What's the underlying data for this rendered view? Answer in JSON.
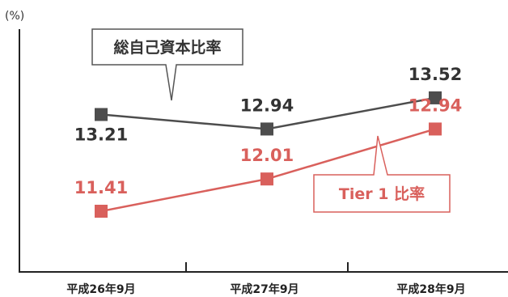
{
  "chart_data": {
    "type": "line",
    "unit_label": "(%)",
    "categories": [
      "平成26年9月",
      "平成27年9月",
      "平成28年9月"
    ],
    "series": [
      {
        "name": "総自己資本比率",
        "values": [
          13.21,
          12.94,
          13.52
        ],
        "value_labels": [
          "13.21",
          "12.94",
          "13.52"
        ],
        "color": "#4d4d4d"
      },
      {
        "name": "Tier 1 比率",
        "values": [
          11.41,
          12.01,
          12.94
        ],
        "value_labels": [
          "11.41",
          "12.01",
          "12.94"
        ],
        "color": "#d9605c"
      }
    ],
    "legend": "callouts",
    "grid": false
  }
}
